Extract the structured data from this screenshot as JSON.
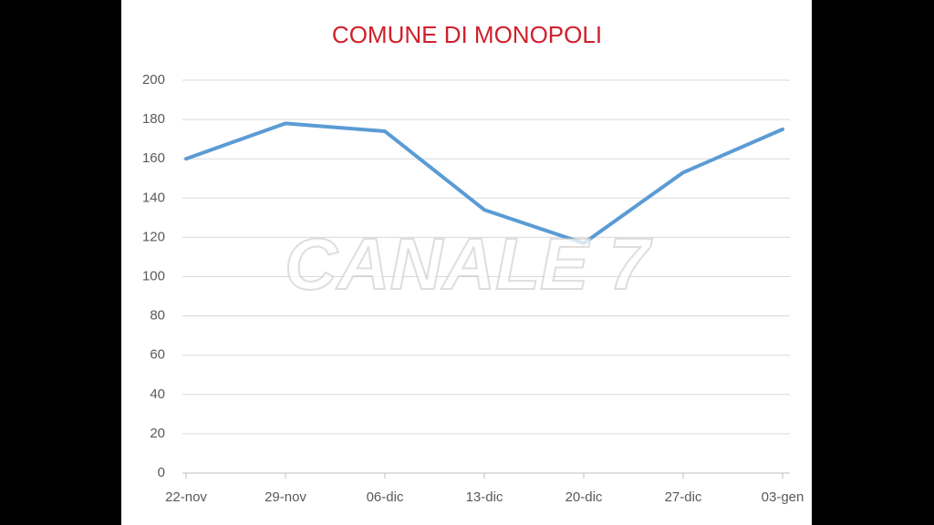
{
  "chart_data": {
    "type": "line",
    "title": "COMUNE DI MONOPOLI",
    "categories": [
      "22-nov",
      "29-nov",
      "06-dic",
      "13-dic",
      "20-dic",
      "27-dic",
      "03-gen"
    ],
    "series": [
      {
        "name": null,
        "color": "#5b9bd5",
        "values": [
          160,
          178,
          174,
          134,
          117,
          153,
          175
        ]
      }
    ],
    "ylim": [
      0,
      200
    ],
    "yticks": [
      0,
      20,
      40,
      60,
      80,
      100,
      120,
      140,
      160,
      180,
      200
    ],
    "grid": true
  },
  "watermark": "CANALE 7"
}
